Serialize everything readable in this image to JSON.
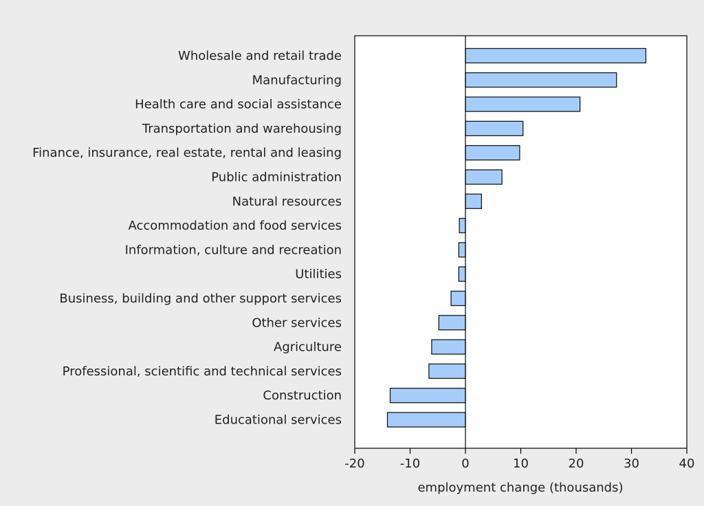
{
  "chart_data": {
    "type": "bar",
    "orientation": "horizontal",
    "categories": [
      "Wholesale and retail trade",
      "Manufacturing",
      "Health care and social assistance",
      "Transportation and warehousing",
      "Finance, insurance, real estate, rental and leasing",
      "Public administration",
      "Natural resources",
      "Accommodation and food services",
      "Information, culture and recreation",
      "Utilities",
      "Business, building and other support services",
      "Other services",
      "Agriculture",
      "Professional, scientific and technical services",
      "Construction",
      "Educational services"
    ],
    "values": [
      32.6,
      27.3,
      20.7,
      10.4,
      9.8,
      6.6,
      2.9,
      -1.1,
      -1.2,
      -1.2,
      -2.6,
      -4.8,
      -6.1,
      -6.6,
      -13.6,
      -14.1
    ],
    "title": "",
    "xlabel": "employment change (thousands)",
    "ylabel": "",
    "xlim": [
      -20,
      40
    ],
    "xticks": [
      "-20",
      "-10",
      "0",
      "10",
      "20",
      "30",
      "40"
    ],
    "grid": false,
    "legend": "none",
    "colors": {
      "bar_fill": "#a6cdfa",
      "bar_stroke": "#1a1a1a",
      "plot_bg": "#ffffff",
      "page_bg": "#ececec",
      "axis": "#000000"
    }
  }
}
